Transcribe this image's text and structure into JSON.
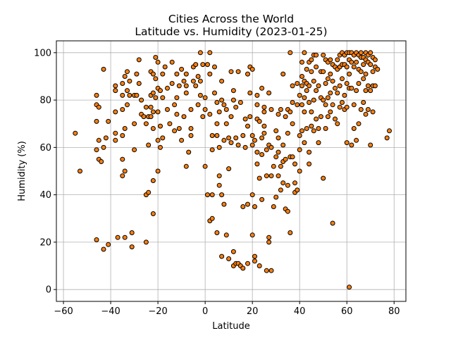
{
  "chart_data": {
    "type": "scatter",
    "title_line1": "Cities Across the World",
    "title_line2": "Latitude vs. Humidity (2023-01-25)",
    "xlabel": "Latitude",
    "ylabel": "Humidity (%)",
    "xlim": [
      -63,
      85
    ],
    "ylim": [
      -5,
      105
    ],
    "xticks": [
      -60,
      -40,
      -20,
      0,
      20,
      40,
      60,
      80
    ],
    "yticks": [
      0,
      20,
      40,
      60,
      80,
      100
    ],
    "grid": true,
    "marker_fill": "#ff7f0e",
    "marker_edge": "#000000",
    "points": [
      [
        -55,
        66
      ],
      [
        -53,
        50
      ],
      [
        -46,
        82
      ],
      [
        -46,
        78
      ],
      [
        -45,
        77
      ],
      [
        -46,
        71
      ],
      [
        -45,
        63
      ],
      [
        -46,
        59
      ],
      [
        -45,
        55
      ],
      [
        -44,
        54
      ],
      [
        -46,
        21
      ],
      [
        -43,
        93
      ],
      [
        -43,
        17
      ],
      [
        -43,
        60
      ],
      [
        -42,
        64
      ],
      [
        -41,
        19
      ],
      [
        -41,
        71
      ],
      [
        -38,
        86
      ],
      [
        -38,
        84
      ],
      [
        -38,
        75
      ],
      [
        -38,
        66
      ],
      [
        -38,
        63
      ],
      [
        -37,
        22
      ],
      [
        -35,
        87
      ],
      [
        -35,
        82
      ],
      [
        -35,
        76
      ],
      [
        -35,
        65
      ],
      [
        -35,
        55
      ],
      [
        -35,
        48
      ],
      [
        -34,
        22
      ],
      [
        -34,
        50
      ],
      [
        -34,
        68
      ],
      [
        -34,
        90
      ],
      [
        -33,
        84
      ],
      [
        -33,
        78
      ],
      [
        -33,
        92
      ],
      [
        -32,
        82
      ],
      [
        -32,
        88
      ],
      [
        -31,
        24
      ],
      [
        -31,
        18
      ],
      [
        -30,
        82
      ],
      [
        -30,
        59
      ],
      [
        -30,
        70
      ],
      [
        -29,
        91
      ],
      [
        -28,
        87
      ],
      [
        -29,
        82
      ],
      [
        -28,
        97
      ],
      [
        -27,
        80
      ],
      [
        -27,
        74
      ],
      [
        -26,
        73
      ],
      [
        -25,
        70
      ],
      [
        -25,
        40
      ],
      [
        -25,
        20
      ],
      [
        -25,
        77
      ],
      [
        -24,
        61
      ],
      [
        -24,
        73
      ],
      [
        -24,
        41
      ],
      [
        -23,
        73
      ],
      [
        -23,
        92
      ],
      [
        -23,
        82
      ],
      [
        -23,
        77
      ],
      [
        -22,
        91
      ],
      [
        -22,
        83
      ],
      [
        -22,
        75
      ],
      [
        -22,
        68
      ],
      [
        -22,
        46
      ],
      [
        -22,
        32
      ],
      [
        -21,
        98
      ],
      [
        -21,
        89
      ],
      [
        -21,
        81
      ],
      [
        -20,
        85
      ],
      [
        -20,
        75
      ],
      [
        -20,
        63
      ],
      [
        -20,
        50
      ],
      [
        -20,
        96
      ],
      [
        -19,
        84
      ],
      [
        -19,
        69
      ],
      [
        -19,
        60
      ],
      [
        -18,
        64
      ],
      [
        -18,
        91
      ],
      [
        -18,
        81
      ],
      [
        -17,
        94
      ],
      [
        -16,
        85
      ],
      [
        -16,
        76
      ],
      [
        -15,
        70
      ],
      [
        -14,
        96
      ],
      [
        -14,
        87
      ],
      [
        -13,
        78
      ],
      [
        -13,
        67
      ],
      [
        -12,
        91
      ],
      [
        -12,
        81
      ],
      [
        -12,
        74
      ],
      [
        -11,
        68
      ],
      [
        -11,
        86
      ],
      [
        -10,
        93
      ],
      [
        -10,
        63
      ],
      [
        -9,
        88
      ],
      [
        -9,
        73
      ],
      [
        -8,
        86
      ],
      [
        -8,
        91
      ],
      [
        -8,
        83
      ],
      [
        -8,
        52
      ],
      [
        -7,
        58
      ],
      [
        -6,
        76
      ],
      [
        -6,
        65
      ],
      [
        -6,
        68
      ],
      [
        -5,
        94
      ],
      [
        -5,
        88
      ],
      [
        -4,
        95
      ],
      [
        -4,
        86
      ],
      [
        -3,
        90
      ],
      [
        -3,
        78
      ],
      [
        -2,
        100
      ],
      [
        -2,
        82
      ],
      [
        -2,
        88
      ],
      [
        -1,
        73
      ],
      [
        -1,
        95
      ],
      [
        0,
        81
      ],
      [
        0,
        76
      ],
      [
        0,
        52
      ],
      [
        1,
        95
      ],
      [
        1,
        40
      ],
      [
        2,
        100
      ],
      [
        2,
        91
      ],
      [
        2,
        74
      ],
      [
        2,
        29
      ],
      [
        3,
        65
      ],
      [
        3,
        30
      ],
      [
        3,
        40
      ],
      [
        3,
        59
      ],
      [
        4,
        94
      ],
      [
        4,
        83
      ],
      [
        5,
        79
      ],
      [
        5,
        70
      ],
      [
        5,
        65
      ],
      [
        5,
        24
      ],
      [
        6,
        75
      ],
      [
        6,
        60
      ],
      [
        6,
        48
      ],
      [
        6,
        44
      ],
      [
        7,
        80
      ],
      [
        7,
        88
      ],
      [
        7,
        40
      ],
      [
        7,
        14
      ],
      [
        8,
        63
      ],
      [
        8,
        36
      ],
      [
        8,
        78
      ],
      [
        9,
        76
      ],
      [
        9,
        70
      ],
      [
        9,
        23
      ],
      [
        10,
        51
      ],
      [
        10,
        64
      ],
      [
        10,
        13
      ],
      [
        11,
        92
      ],
      [
        11,
        73
      ],
      [
        11,
        62
      ],
      [
        12,
        84
      ],
      [
        12,
        80
      ],
      [
        12,
        16
      ],
      [
        12,
        10
      ],
      [
        13,
        64
      ],
      [
        13,
        77
      ],
      [
        13,
        11
      ],
      [
        14,
        92
      ],
      [
        14,
        61
      ],
      [
        14,
        11
      ],
      [
        15,
        79
      ],
      [
        15,
        10
      ],
      [
        16,
        9
      ],
      [
        16,
        65
      ],
      [
        16,
        35
      ],
      [
        17,
        72
      ],
      [
        17,
        60
      ],
      [
        18,
        91
      ],
      [
        18,
        69
      ],
      [
        18,
        36
      ],
      [
        18,
        11
      ],
      [
        19,
        94
      ],
      [
        19,
        83
      ],
      [
        19,
        73
      ],
      [
        20,
        40
      ],
      [
        20,
        23
      ],
      [
        20,
        93
      ],
      [
        20,
        65
      ],
      [
        20,
        61
      ],
      [
        21,
        63
      ],
      [
        21,
        12
      ],
      [
        21,
        35
      ],
      [
        21,
        14
      ],
      [
        22,
        78
      ],
      [
        22,
        58
      ],
      [
        22,
        53
      ],
      [
        22,
        82
      ],
      [
        22,
        72
      ],
      [
        23,
        10
      ],
      [
        23,
        47
      ],
      [
        23,
        71
      ],
      [
        24,
        85
      ],
      [
        24,
        64
      ],
      [
        24,
        57
      ],
      [
        24,
        38
      ],
      [
        25,
        77
      ],
      [
        25,
        69
      ],
      [
        25,
        75
      ],
      [
        25,
        66
      ],
      [
        26,
        48
      ],
      [
        26,
        59
      ],
      [
        26,
        8
      ],
      [
        27,
        83
      ],
      [
        27,
        61
      ],
      [
        27,
        22
      ],
      [
        27,
        20
      ],
      [
        28,
        76
      ],
      [
        28,
        60
      ],
      [
        28,
        8
      ],
      [
        28,
        48
      ],
      [
        29,
        52
      ],
      [
        29,
        35
      ],
      [
        30,
        67
      ],
      [
        30,
        56
      ],
      [
        30,
        39
      ],
      [
        31,
        48
      ],
      [
        31,
        74
      ],
      [
        31,
        64
      ],
      [
        31,
        58
      ],
      [
        32,
        76
      ],
      [
        32,
        52
      ],
      [
        32,
        42
      ],
      [
        33,
        91
      ],
      [
        33,
        61
      ],
      [
        33,
        54
      ],
      [
        33,
        45
      ],
      [
        34,
        73
      ],
      [
        34,
        55
      ],
      [
        34,
        34
      ],
      [
        35,
        76
      ],
      [
        35,
        66
      ],
      [
        35,
        44
      ],
      [
        35,
        33
      ],
      [
        36,
        100
      ],
      [
        36,
        75
      ],
      [
        36,
        56
      ],
      [
        36,
        24
      ],
      [
        37,
        86
      ],
      [
        37,
        79
      ],
      [
        37,
        70
      ],
      [
        37,
        56
      ],
      [
        38,
        53
      ],
      [
        38,
        45
      ],
      [
        38,
        41
      ],
      [
        39,
        87
      ],
      [
        39,
        78
      ],
      [
        39,
        42
      ],
      [
        40,
        82
      ],
      [
        40,
        65
      ],
      [
        40,
        59
      ],
      [
        40,
        50
      ],
      [
        41,
        96
      ],
      [
        41,
        90
      ],
      [
        41,
        86
      ],
      [
        41,
        78
      ],
      [
        41,
        67
      ],
      [
        42,
        100
      ],
      [
        42,
        88
      ],
      [
        42,
        81
      ],
      [
        42,
        75
      ],
      [
        42,
        62
      ],
      [
        43,
        93
      ],
      [
        43,
        87
      ],
      [
        43,
        84
      ],
      [
        43,
        68
      ],
      [
        44,
        96
      ],
      [
        44,
        86
      ],
      [
        44,
        79
      ],
      [
        44,
        58
      ],
      [
        44,
        53
      ],
      [
        45,
        97
      ],
      [
        45,
        92
      ],
      [
        45,
        75
      ],
      [
        45,
        69
      ],
      [
        46,
        99
      ],
      [
        46,
        88
      ],
      [
        46,
        80
      ],
      [
        46,
        67
      ],
      [
        47,
        99
      ],
      [
        47,
        94
      ],
      [
        47,
        84
      ],
      [
        47,
        72
      ],
      [
        48,
        86
      ],
      [
        48,
        68
      ],
      [
        48,
        62
      ],
      [
        49,
        92
      ],
      [
        49,
        81
      ],
      [
        49,
        73
      ],
      [
        50,
        99
      ],
      [
        50,
        92
      ],
      [
        50,
        80
      ],
      [
        50,
        47
      ],
      [
        51,
        97
      ],
      [
        51,
        87
      ],
      [
        51,
        78
      ],
      [
        51,
        68
      ],
      [
        52,
        96
      ],
      [
        52,
        89
      ],
      [
        52,
        81
      ],
      [
        52,
        73
      ],
      [
        53,
        97
      ],
      [
        53,
        91
      ],
      [
        53,
        83
      ],
      [
        53,
        75
      ],
      [
        54,
        95
      ],
      [
        54,
        88
      ],
      [
        54,
        78
      ],
      [
        54,
        28
      ],
      [
        55,
        94
      ],
      [
        55,
        85
      ],
      [
        55,
        72
      ],
      [
        56,
        97
      ],
      [
        56,
        93
      ],
      [
        56,
        83
      ],
      [
        56,
        70
      ],
      [
        57,
        99
      ],
      [
        57,
        94
      ],
      [
        57,
        86
      ],
      [
        57,
        77
      ],
      [
        58,
        100
      ],
      [
        58,
        95
      ],
      [
        58,
        89
      ],
      [
        58,
        79
      ],
      [
        59,
        99
      ],
      [
        59,
        95
      ],
      [
        59,
        82
      ],
      [
        59,
        76
      ],
      [
        60,
        100
      ],
      [
        60,
        94
      ],
      [
        60,
        87
      ],
      [
        60,
        77
      ],
      [
        60,
        62
      ],
      [
        61,
        100
      ],
      [
        61,
        97
      ],
      [
        61,
        91
      ],
      [
        61,
        85
      ],
      [
        61,
        1
      ],
      [
        62,
        100
      ],
      [
        62,
        96
      ],
      [
        62,
        85
      ],
      [
        62,
        61
      ],
      [
        63,
        99
      ],
      [
        63,
        94
      ],
      [
        63,
        78
      ],
      [
        63,
        68
      ],
      [
        64,
        100
      ],
      [
        64,
        96
      ],
      [
        64,
        84
      ],
      [
        64,
        63
      ],
      [
        65,
        99
      ],
      [
        65,
        93
      ],
      [
        65,
        87
      ],
      [
        65,
        70
      ],
      [
        66,
        100
      ],
      [
        66,
        98
      ],
      [
        66,
        92
      ],
      [
        66,
        76
      ],
      [
        67,
        98
      ],
      [
        67,
        95
      ],
      [
        67,
        89
      ],
      [
        67,
        79
      ],
      [
        68,
        100
      ],
      [
        68,
        97
      ],
      [
        68,
        91
      ],
      [
        68,
        84
      ],
      [
        68,
        74
      ],
      [
        69,
        99
      ],
      [
        69,
        96
      ],
      [
        69,
        86
      ],
      [
        69,
        76
      ],
      [
        70,
        100
      ],
      [
        70,
        95
      ],
      [
        70,
        84
      ],
      [
        70,
        61
      ],
      [
        71,
        98
      ],
      [
        71,
        92
      ],
      [
        71,
        86
      ],
      [
        71,
        75
      ],
      [
        72,
        97
      ],
      [
        72,
        94
      ],
      [
        72,
        86
      ],
      [
        73,
        93
      ],
      [
        77,
        64
      ],
      [
        78,
        67
      ]
    ]
  }
}
